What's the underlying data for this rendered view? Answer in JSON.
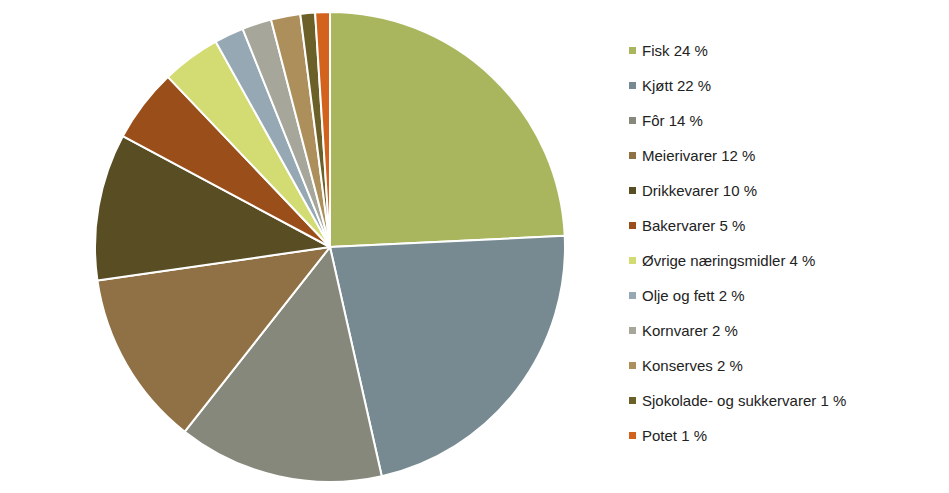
{
  "chart_data": {
    "type": "pie",
    "categories": [
      "Fisk 24 %",
      "Kjøtt 22 %",
      "Fôr 14 %",
      "Meierivarer 12 %",
      "Drikkevarer 10 %",
      "Bakervarer 5 %",
      "Øvrige næringsmidler 4 %",
      "Olje og fett 2 %",
      "Kornvarer 2 %",
      "Konserves 2 %",
      "Sjokolade- og sukkervarer 1 %",
      "Potet 1 %"
    ],
    "values": [
      24,
      22,
      14,
      12,
      10,
      5,
      4,
      2,
      2,
      2,
      1,
      1
    ],
    "colors": [
      "#a9b65e",
      "#778a92",
      "#85887b",
      "#8f7145",
      "#594d24",
      "#9a4f1a",
      "#d3dc73",
      "#95a8b3",
      "#a6a69b",
      "#ad8f5c",
      "#6b6128",
      "#d2621c"
    ],
    "legend": "right"
  }
}
